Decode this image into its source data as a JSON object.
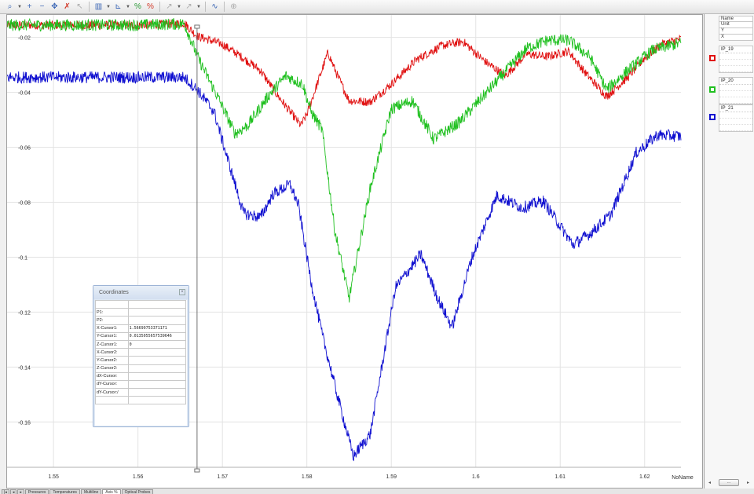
{
  "toolbar": {
    "icons": [
      "zoom-tool-icon",
      "plus-icon",
      "minus-icon",
      "pan-icon",
      "delete-icon",
      "pointer-icon",
      "chart-type-icon",
      "axis-icon",
      "scale-percent-icon",
      "scale-reset-icon",
      "cursor-icon",
      "cursor-options-icon",
      "measure-icon",
      "lock-icon"
    ]
  },
  "legend": {
    "header_rows": [
      "Name",
      "Unit",
      "Y",
      "X"
    ],
    "entries": [
      {
        "name": "IP_19",
        "color": "#e01010"
      },
      {
        "name": "IP_20",
        "color": "#20c020"
      },
      {
        "name": "IP_21",
        "color": "#1010d0"
      }
    ],
    "scroll_label": "..."
  },
  "coordinates_panel": {
    "title": "Coordinates",
    "close": "×",
    "rows": [
      {
        "label": "P1:",
        "value": ""
      },
      {
        "label": "P2:",
        "value": ""
      },
      {
        "label": "X-Cursor1:",
        "value": "1.56699753371171"
      },
      {
        "label": "Y-Cursor1:",
        "value": "0.0135055657539646"
      },
      {
        "label": "Z-Cursor1:",
        "value": "0"
      },
      {
        "label": "X-Cursor2:",
        "value": ""
      },
      {
        "label": "Y-Cursor2:",
        "value": ""
      },
      {
        "label": "Z-Cursor2:",
        "value": ""
      },
      {
        "label": "dX-Cursor:",
        "value": ""
      },
      {
        "label": "dY-Cursor:",
        "value": ""
      },
      {
        "label": "dY-Cursor:/",
        "value": ""
      }
    ]
  },
  "tabs": {
    "nav": [
      "|◂",
      "◂",
      "▸"
    ],
    "items": [
      "Pressures",
      "Temperatures",
      "Multiline",
      "Axis %",
      "Optical Probes"
    ],
    "active_index": 3
  },
  "chart_data": {
    "type": "line",
    "xlabel": "NoName",
    "ylabel": "",
    "xlim": [
      1.5445,
      1.6243
    ],
    "ylim": [
      -0.1765,
      -0.0118
    ],
    "x_ticks": [
      1.55,
      1.56,
      1.57,
      1.58,
      1.59,
      1.6,
      1.61,
      1.62
    ],
    "x_tick_labels": [
      "1.55",
      "1.56",
      "1.57",
      "1.58",
      "1.59",
      "1.6",
      "1.61",
      "1.62"
    ],
    "y_ticks": [
      -0.02,
      -0.04,
      -0.06,
      -0.08,
      -0.1,
      -0.12,
      -0.14,
      -0.16
    ],
    "y_tick_labels": [
      "-0.02",
      "-0.04",
      "-0.06",
      "-0.08",
      "-0.1",
      "-0.12",
      "-0.14",
      "-0.16"
    ],
    "grid": true,
    "cursor_x": 1.56699753371171,
    "series": [
      {
        "name": "IP_19",
        "color": "#e01010",
        "noise": 0.0016,
        "x": [
          1.5445,
          1.55,
          1.555,
          1.56,
          1.5655,
          1.567,
          1.57,
          1.572,
          1.5745,
          1.5765,
          1.578,
          1.5793,
          1.58,
          1.5815,
          1.5825,
          1.5835,
          1.585,
          1.5875,
          1.59,
          1.593,
          1.596,
          1.5985,
          1.601,
          1.6035,
          1.606,
          1.6085,
          1.611,
          1.613,
          1.6155,
          1.618,
          1.62,
          1.622,
          1.6243
        ],
        "y": [
          -0.0155,
          -0.0155,
          -0.0155,
          -0.0155,
          -0.0148,
          -0.0195,
          -0.0225,
          -0.0265,
          -0.032,
          -0.041,
          -0.047,
          -0.052,
          -0.048,
          -0.0345,
          -0.0255,
          -0.033,
          -0.043,
          -0.0435,
          -0.037,
          -0.028,
          -0.023,
          -0.0215,
          -0.0285,
          -0.034,
          -0.026,
          -0.027,
          -0.025,
          -0.033,
          -0.0415,
          -0.0345,
          -0.0275,
          -0.0225,
          -0.0205
        ]
      },
      {
        "name": "IP_20",
        "color": "#20c020",
        "noise": 0.0022,
        "x": [
          1.5445,
          1.55,
          1.555,
          1.56,
          1.5655,
          1.5672,
          1.5695,
          1.5715,
          1.573,
          1.5755,
          1.5775,
          1.5795,
          1.5805,
          1.5818,
          1.5833,
          1.585,
          1.5875,
          1.59,
          1.5925,
          1.595,
          1.598,
          1.601,
          1.6035,
          1.606,
          1.6085,
          1.611,
          1.6135,
          1.6155,
          1.618,
          1.621,
          1.6243
        ],
        "y": [
          -0.0155,
          -0.0155,
          -0.0155,
          -0.0155,
          -0.015,
          -0.028,
          -0.042,
          -0.055,
          -0.052,
          -0.041,
          -0.034,
          -0.037,
          -0.047,
          -0.0535,
          -0.09,
          -0.115,
          -0.075,
          -0.046,
          -0.043,
          -0.057,
          -0.051,
          -0.041,
          -0.0325,
          -0.024,
          -0.021,
          -0.021,
          -0.027,
          -0.039,
          -0.032,
          -0.0245,
          -0.022
        ]
      },
      {
        "name": "IP_21",
        "color": "#1010d0",
        "noise": 0.0022,
        "x": [
          1.5445,
          1.55,
          1.555,
          1.56,
          1.5655,
          1.567,
          1.569,
          1.5705,
          1.5725,
          1.5745,
          1.576,
          1.578,
          1.579,
          1.5805,
          1.5818,
          1.5835,
          1.5855,
          1.5875,
          1.5905,
          1.5935,
          1.5955,
          1.5972,
          1.5995,
          1.6025,
          1.6055,
          1.608,
          1.6115,
          1.6135,
          1.616,
          1.619,
          1.6215,
          1.6243
        ],
        "y": [
          -0.0345,
          -0.0345,
          -0.0345,
          -0.0345,
          -0.0345,
          -0.039,
          -0.047,
          -0.063,
          -0.084,
          -0.0855,
          -0.077,
          -0.0735,
          -0.081,
          -0.109,
          -0.128,
          -0.149,
          -0.1725,
          -0.1645,
          -0.111,
          -0.099,
          -0.115,
          -0.1255,
          -0.1005,
          -0.0775,
          -0.082,
          -0.0795,
          -0.0955,
          -0.0915,
          -0.0845,
          -0.062,
          -0.0555,
          -0.056
        ]
      }
    ]
  }
}
